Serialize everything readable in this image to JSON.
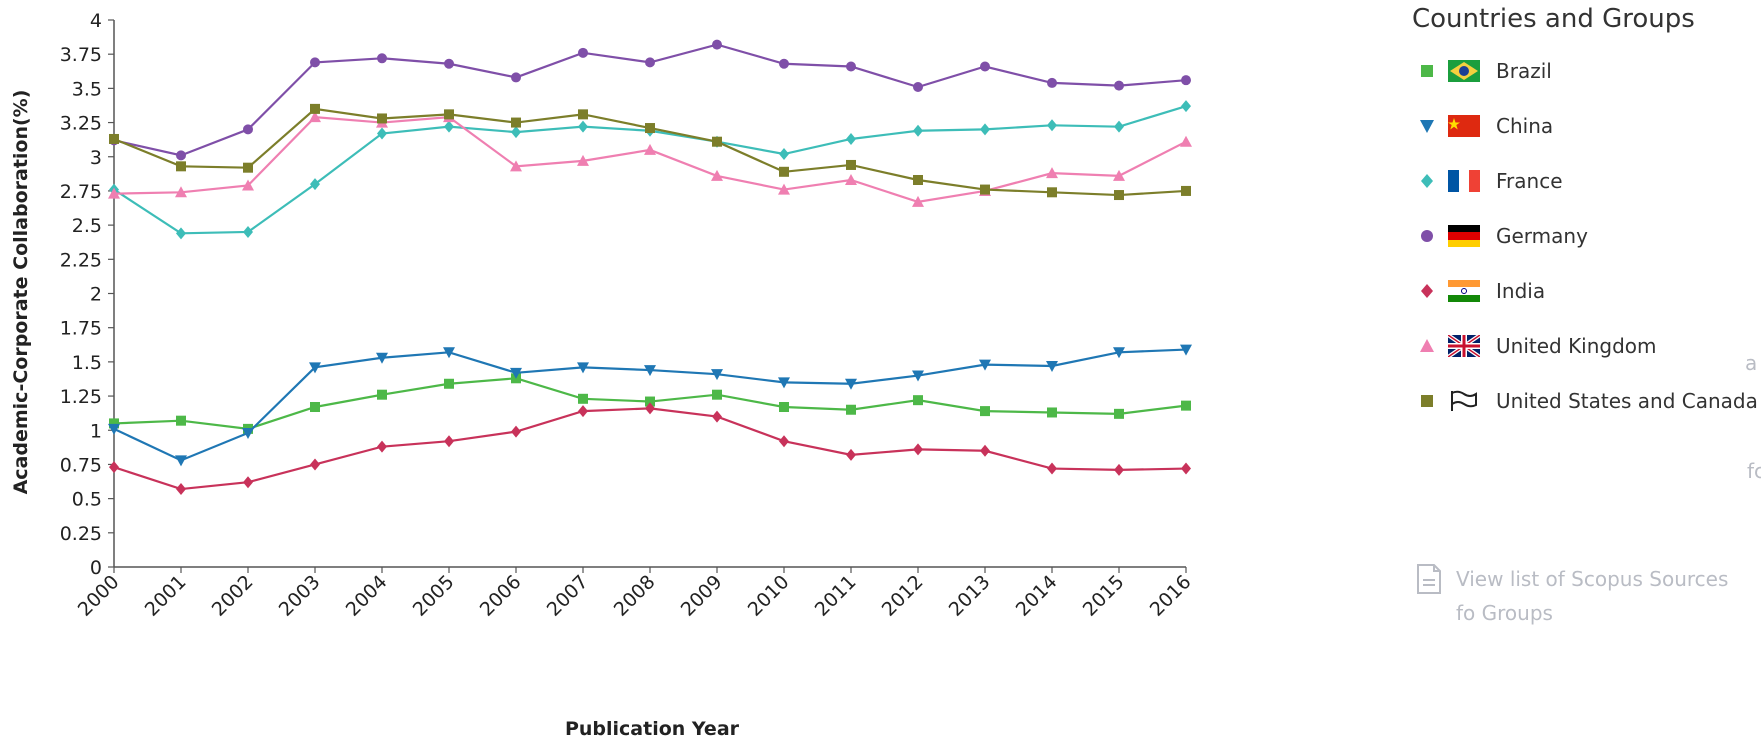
{
  "chart_data": {
    "type": "line",
    "title": "",
    "xlabel": "Publication Year",
    "ylabel": "Academic-Corporate Collaboration(%)",
    "x": [
      "2000",
      "2001",
      "2002",
      "2003",
      "2004",
      "2005",
      "2006",
      "2007",
      "2008",
      "2009",
      "2010",
      "2011",
      "2012",
      "2013",
      "2014",
      "2015",
      "2016"
    ],
    "yticks": [
      "0",
      "0.25",
      "0.5",
      "0.75",
      "1",
      "1.25",
      "1.5",
      "1.75",
      "2",
      "2.25",
      "2.5",
      "2.75",
      "3",
      "3.25",
      "3.5",
      "3.75",
      "4"
    ],
    "ylim": [
      0,
      4
    ],
    "grid": false,
    "legend_position": "right",
    "legend_title": "Countries and Groups",
    "series": [
      {
        "name": "Brazil",
        "color": "#4db848",
        "marker": "square",
        "flag": "brazil-flag",
        "values": [
          1.05,
          1.07,
          1.01,
          1.17,
          1.26,
          1.34,
          1.38,
          1.23,
          1.21,
          1.26,
          1.17,
          1.15,
          1.22,
          1.14,
          1.13,
          1.12,
          1.18
        ]
      },
      {
        "name": "China",
        "color": "#1f77b4",
        "marker": "triangle-down",
        "flag": "china-flag",
        "values": [
          1.01,
          0.78,
          0.98,
          1.46,
          1.53,
          1.57,
          1.42,
          1.46,
          1.44,
          1.41,
          1.35,
          1.34,
          1.4,
          1.48,
          1.47,
          1.57,
          1.59
        ]
      },
      {
        "name": "France",
        "color": "#3dbdb8",
        "marker": "diamond",
        "flag": "france-flag",
        "values": [
          2.76,
          2.44,
          2.45,
          2.8,
          3.17,
          3.22,
          3.18,
          3.22,
          3.19,
          3.11,
          3.02,
          3.13,
          3.19,
          3.2,
          3.23,
          3.22,
          3.37
        ]
      },
      {
        "name": "Germany",
        "color": "#7f4fa8",
        "marker": "circle",
        "flag": "germany-flag",
        "values": [
          3.12,
          3.01,
          3.2,
          3.69,
          3.72,
          3.68,
          3.58,
          3.76,
          3.69,
          3.82,
          3.68,
          3.66,
          3.51,
          3.66,
          3.54,
          3.52,
          3.56
        ]
      },
      {
        "name": "India",
        "color": "#c8325a",
        "marker": "diamond",
        "flag": "india-flag",
        "values": [
          0.73,
          0.57,
          0.62,
          0.75,
          0.88,
          0.92,
          0.99,
          1.14,
          1.16,
          1.1,
          0.92,
          0.82,
          0.86,
          0.85,
          0.72,
          0.71,
          0.72
        ]
      },
      {
        "name": "United Kingdom",
        "color": "#ef7fb1",
        "marker": "triangle-up",
        "flag": "uk-flag",
        "values": [
          2.73,
          2.74,
          2.79,
          3.29,
          3.25,
          3.29,
          2.93,
          2.97,
          3.05,
          2.86,
          2.76,
          2.83,
          2.67,
          2.75,
          2.88,
          2.86,
          3.11
        ]
      },
      {
        "name": "United States and Canada",
        "color": "#7c7e2a",
        "marker": "square",
        "flag": "flag-outline-icon",
        "values": [
          3.13,
          2.93,
          2.92,
          3.35,
          3.28,
          3.31,
          3.25,
          3.31,
          3.21,
          3.11,
          2.89,
          2.94,
          2.83,
          2.76,
          2.74,
          2.72,
          2.75
        ]
      }
    ]
  },
  "sidebar": {
    "link_text": "View list of Scopus Sources fo Groups",
    "link_icon": "document-icon",
    "fragment_a": "a",
    "fragment_fc": "fc"
  }
}
